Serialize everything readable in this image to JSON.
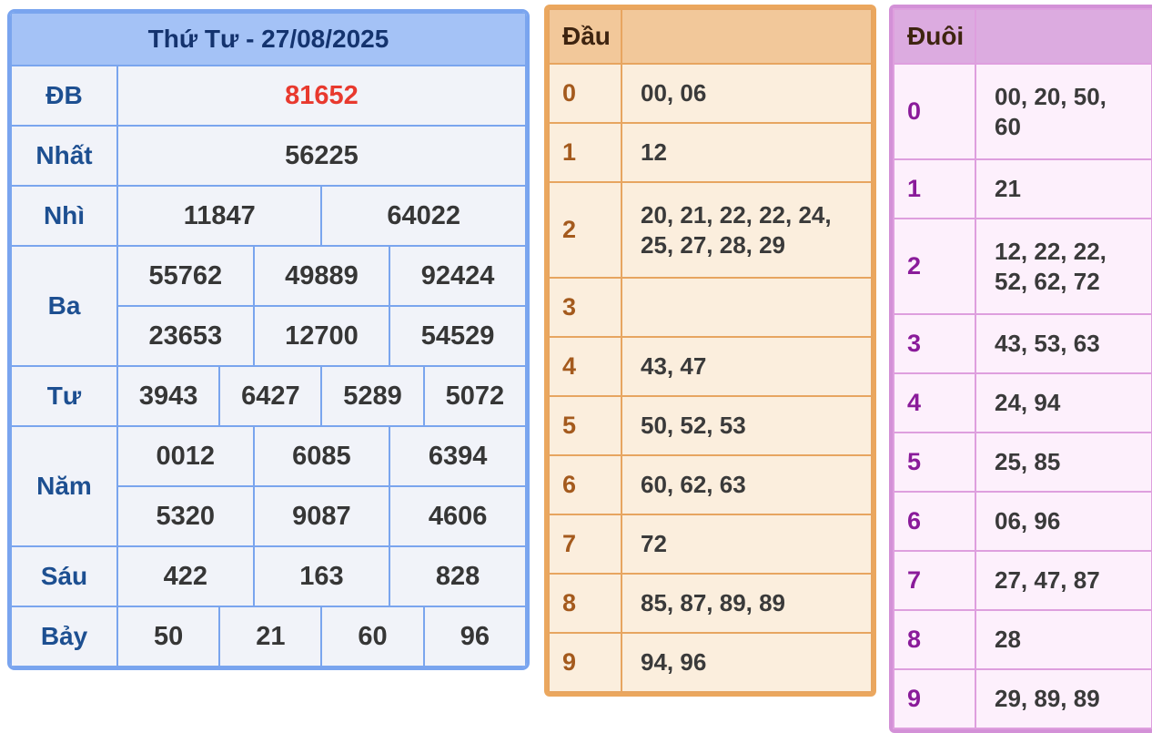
{
  "results_table": {
    "title": "Thứ Tư - 27/08/2025",
    "rows": [
      {
        "label": "ĐB",
        "special": true,
        "groups": [
          [
            "81652"
          ]
        ]
      },
      {
        "label": "Nhất",
        "special": false,
        "groups": [
          [
            "56225"
          ]
        ]
      },
      {
        "label": "Nhì",
        "special": false,
        "groups": [
          [
            "11847",
            "64022"
          ]
        ]
      },
      {
        "label": "Ba",
        "special": false,
        "groups": [
          [
            "55762",
            "49889",
            "92424"
          ],
          [
            "23653",
            "12700",
            "54529"
          ]
        ]
      },
      {
        "label": "Tư",
        "special": false,
        "groups": [
          [
            "3943",
            "6427",
            "5289",
            "5072"
          ]
        ]
      },
      {
        "label": "Năm",
        "special": false,
        "groups": [
          [
            "0012",
            "6085",
            "6394"
          ],
          [
            "5320",
            "9087",
            "4606"
          ]
        ]
      },
      {
        "label": "Sáu",
        "special": false,
        "groups": [
          [
            "422",
            "163",
            "828"
          ]
        ]
      },
      {
        "label": "Bảy",
        "special": false,
        "groups": [
          [
            "50",
            "21",
            "60",
            "96"
          ]
        ]
      }
    ]
  },
  "dau_table": {
    "header": "Đầu",
    "rows": [
      {
        "digit": "0",
        "values": "00, 06",
        "tall": false
      },
      {
        "digit": "1",
        "values": "12",
        "tall": false
      },
      {
        "digit": "2",
        "values": "20, 21, 22, 22, 24,\n25, 27, 28, 29",
        "tall": true
      },
      {
        "digit": "3",
        "values": "",
        "tall": false
      },
      {
        "digit": "4",
        "values": "43, 47",
        "tall": false
      },
      {
        "digit": "5",
        "values": "50, 52, 53",
        "tall": false
      },
      {
        "digit": "6",
        "values": "60, 62, 63",
        "tall": false
      },
      {
        "digit": "7",
        "values": "72",
        "tall": false
      },
      {
        "digit": "8",
        "values": "85, 87, 89, 89",
        "tall": false
      },
      {
        "digit": "9",
        "values": "94, 96",
        "tall": false
      }
    ]
  },
  "duoi_table": {
    "header": "Đuôi",
    "rows": [
      {
        "digit": "0",
        "values": "00, 20, 50,\n60",
        "tall": true
      },
      {
        "digit": "1",
        "values": "21",
        "tall": false
      },
      {
        "digit": "2",
        "values": "12, 22, 22,\n52, 62, 72",
        "tall": true
      },
      {
        "digit": "3",
        "values": "43, 53, 63",
        "tall": false
      },
      {
        "digit": "4",
        "values": "24, 94",
        "tall": false
      },
      {
        "digit": "5",
        "values": "25, 85",
        "tall": false
      },
      {
        "digit": "6",
        "values": "06, 96",
        "tall": false
      },
      {
        "digit": "7",
        "values": "27, 47, 87",
        "tall": false
      },
      {
        "digit": "8",
        "values": "28",
        "tall": false
      },
      {
        "digit": "9",
        "values": "29, 89, 89",
        "tall": false
      }
    ]
  },
  "colors": {
    "special_prize_text": "#e8392e",
    "results_accent": "#7aa5ee",
    "results_header_bg": "#a4c2f6",
    "dau_accent": "#eba75e",
    "dau_header_bg": "#f2c89a",
    "duoi_accent": "#d391d7",
    "duoi_header_bg": "#dcabe0"
  }
}
